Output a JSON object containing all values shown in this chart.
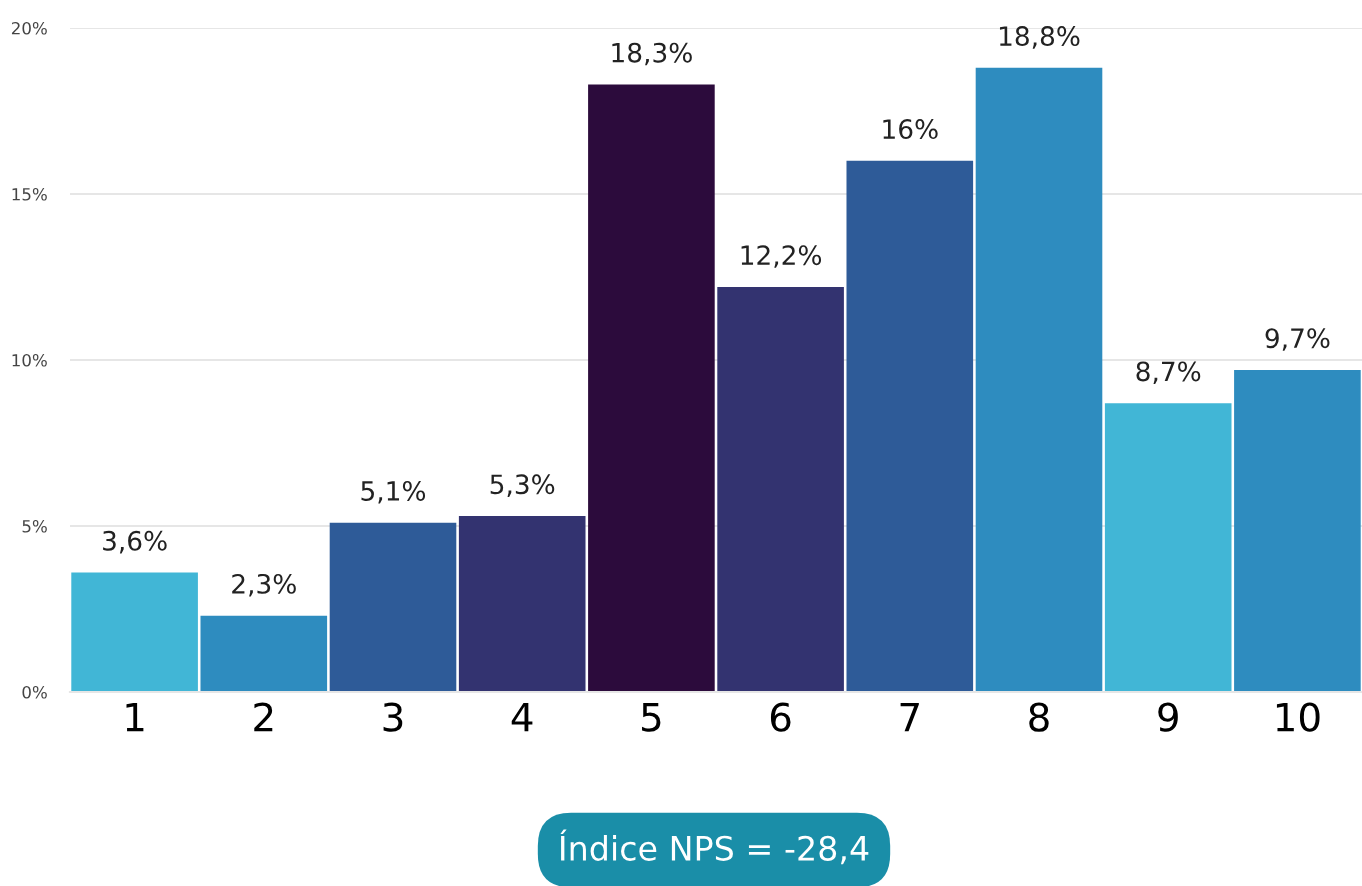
{
  "chart_data": {
    "type": "bar",
    "categories": [
      "1",
      "2",
      "3",
      "4",
      "5",
      "6",
      "7",
      "8",
      "9",
      "10"
    ],
    "values": [
      3.6,
      2.3,
      5.1,
      5.3,
      18.3,
      12.2,
      16,
      18.8,
      8.7,
      9.7
    ],
    "colors": [
      "#41b6d6",
      "#2e8cbf",
      "#2e5b98",
      "#333370",
      "#2c0b3c",
      "#333370",
      "#2e5b98",
      "#2e8cbf",
      "#41b6d6",
      "#2e8cbf"
    ],
    "value_labels": [
      "3,6%",
      "2,3%",
      "5,1%",
      "5,3%",
      "18,3%",
      "12,2%",
      "16%",
      "18,8%",
      "8,7%",
      "9,7%"
    ],
    "ylim": [
      0,
      20
    ],
    "yticks": [
      {
        "value": 0,
        "label": "0%"
      },
      {
        "value": 5,
        "label": "5%"
      },
      {
        "value": 10,
        "label": "10%"
      },
      {
        "value": 15,
        "label": "15%"
      },
      {
        "value": 20,
        "label": "20%"
      }
    ],
    "grid": "y",
    "annotations": [
      "Índice NPS = -28,4"
    ]
  }
}
